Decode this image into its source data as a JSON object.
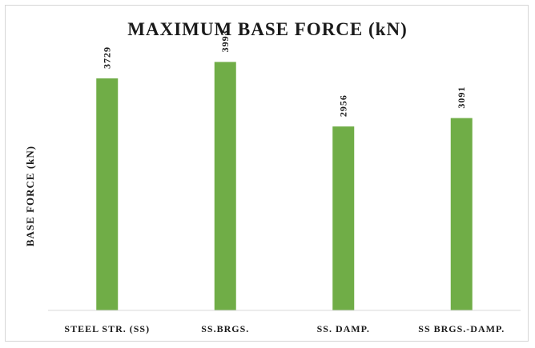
{
  "chart_data": {
    "type": "bar",
    "title": "MAXIMUM BASE FORCE (kN)",
    "xlabel": "",
    "ylabel": "BASE  FORCE (kN)",
    "categories": [
      "STEEL STR. (SS)",
      "SS.BRGS.",
      "SS. DAMP.",
      "SS BRGS.-DAMP."
    ],
    "values": [
      3729,
      3993,
      2956,
      3091
    ],
    "data_labels": [
      "3729",
      "3993",
      "2956",
      "3091"
    ],
    "ylim": [
      0,
      4500
    ],
    "grid": false,
    "legend": "none",
    "bar_color": "#70ad47",
    "axis_color": "#d9d9d9"
  }
}
